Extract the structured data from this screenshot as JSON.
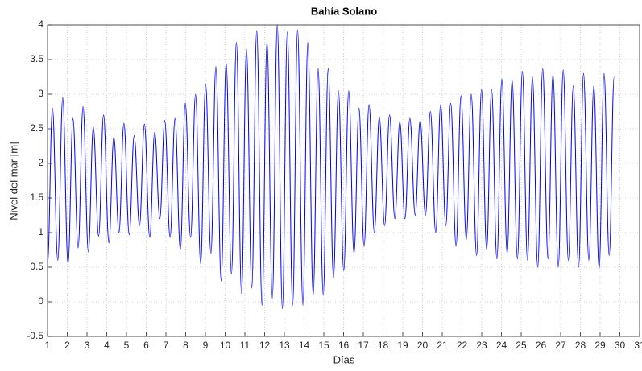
{
  "chart_data": {
    "type": "line",
    "title": "Bahía Solano",
    "xlabel": "Días",
    "ylabel": "Nivel del mar [m]",
    "x": [
      1,
      1.25,
      1.52,
      1.77,
      2.04,
      2.29,
      2.55,
      2.8,
      3.07,
      3.32,
      3.59,
      3.84,
      4.11,
      4.36,
      4.62,
      4.87,
      5.14,
      5.39,
      5.66,
      5.91,
      6.18,
      6.43,
      6.69,
      6.94,
      7.21,
      7.46,
      7.73,
      7.98,
      8.25,
      8.5,
      8.76,
      9.01,
      9.28,
      9.53,
      9.8,
      10.05,
      10.32,
      10.57,
      10.83,
      11.08,
      11.35,
      11.6,
      11.87,
      12.12,
      12.39,
      12.64,
      12.9,
      13.15,
      13.42,
      13.67,
      13.94,
      14.19,
      14.46,
      14.71,
      14.97,
      15.22,
      15.49,
      15.74,
      16.01,
      16.26,
      16.53,
      16.78,
      17.04,
      17.29,
      17.56,
      17.81,
      18.08,
      18.33,
      18.6,
      18.85,
      19.11,
      19.36,
      19.63,
      19.88,
      20.15,
      20.4,
      20.67,
      20.92,
      21.18,
      21.43,
      21.7,
      21.95,
      22.22,
      22.47,
      22.74,
      22.99,
      23.25,
      23.5,
      23.77,
      24.02,
      24.29,
      24.54,
      24.81,
      25.06,
      25.32,
      25.57,
      25.84,
      26.09,
      26.36,
      26.61,
      26.88,
      27.13,
      27.39,
      27.64,
      27.91,
      28.16,
      28.43,
      28.68,
      28.95,
      29.2,
      29.46,
      29.71
    ],
    "values": [
      0.55,
      2.8,
      0.6,
      2.95,
      0.55,
      2.65,
      0.78,
      2.82,
      0.72,
      2.52,
      0.95,
      2.7,
      0.85,
      2.38,
      1.0,
      2.58,
      0.97,
      2.4,
      1.1,
      2.57,
      0.93,
      2.45,
      1.2,
      2.62,
      0.93,
      2.65,
      0.75,
      2.87,
      0.93,
      3.0,
      0.55,
      3.15,
      0.7,
      3.4,
      0.3,
      3.45,
      0.4,
      3.75,
      0.12,
      3.65,
      0.2,
      3.92,
      -0.05,
      3.75,
      0.05,
      4.0,
      -0.1,
      3.9,
      -0.05,
      3.93,
      -0.05,
      3.75,
      0.1,
      3.37,
      0.1,
      3.37,
      0.35,
      3.05,
      0.45,
      3.05,
      0.7,
      2.8,
      0.8,
      2.85,
      1.0,
      2.67,
      1.1,
      2.7,
      1.2,
      2.6,
      1.2,
      2.65,
      1.25,
      2.62,
      1.25,
      2.75,
      1.0,
      2.85,
      1.1,
      2.87,
      0.8,
      2.98,
      0.9,
      3.0,
      0.67,
      3.07,
      0.75,
      3.07,
      0.62,
      3.22,
      0.7,
      3.2,
      0.62,
      3.33,
      0.6,
      3.25,
      0.5,
      3.37,
      0.62,
      3.28,
      0.5,
      3.35,
      0.6,
      3.12,
      0.5,
      3.3,
      0.6,
      3.12,
      0.48,
      3.3,
      0.67,
      3.25
    ],
    "color": "#0000ff",
    "xlim": [
      1,
      31
    ],
    "xticks": [
      1,
      2,
      3,
      4,
      5,
      6,
      7,
      8,
      9,
      10,
      11,
      12,
      13,
      14,
      15,
      16,
      17,
      18,
      19,
      20,
      21,
      22,
      23,
      24,
      25,
      26,
      27,
      28,
      29,
      30,
      31
    ],
    "ylim": [
      -0.5,
      4
    ],
    "yticks": [
      -0.5,
      0,
      0.5,
      1,
      1.5,
      2,
      2.5,
      3,
      3.5,
      4
    ],
    "grid": true
  }
}
